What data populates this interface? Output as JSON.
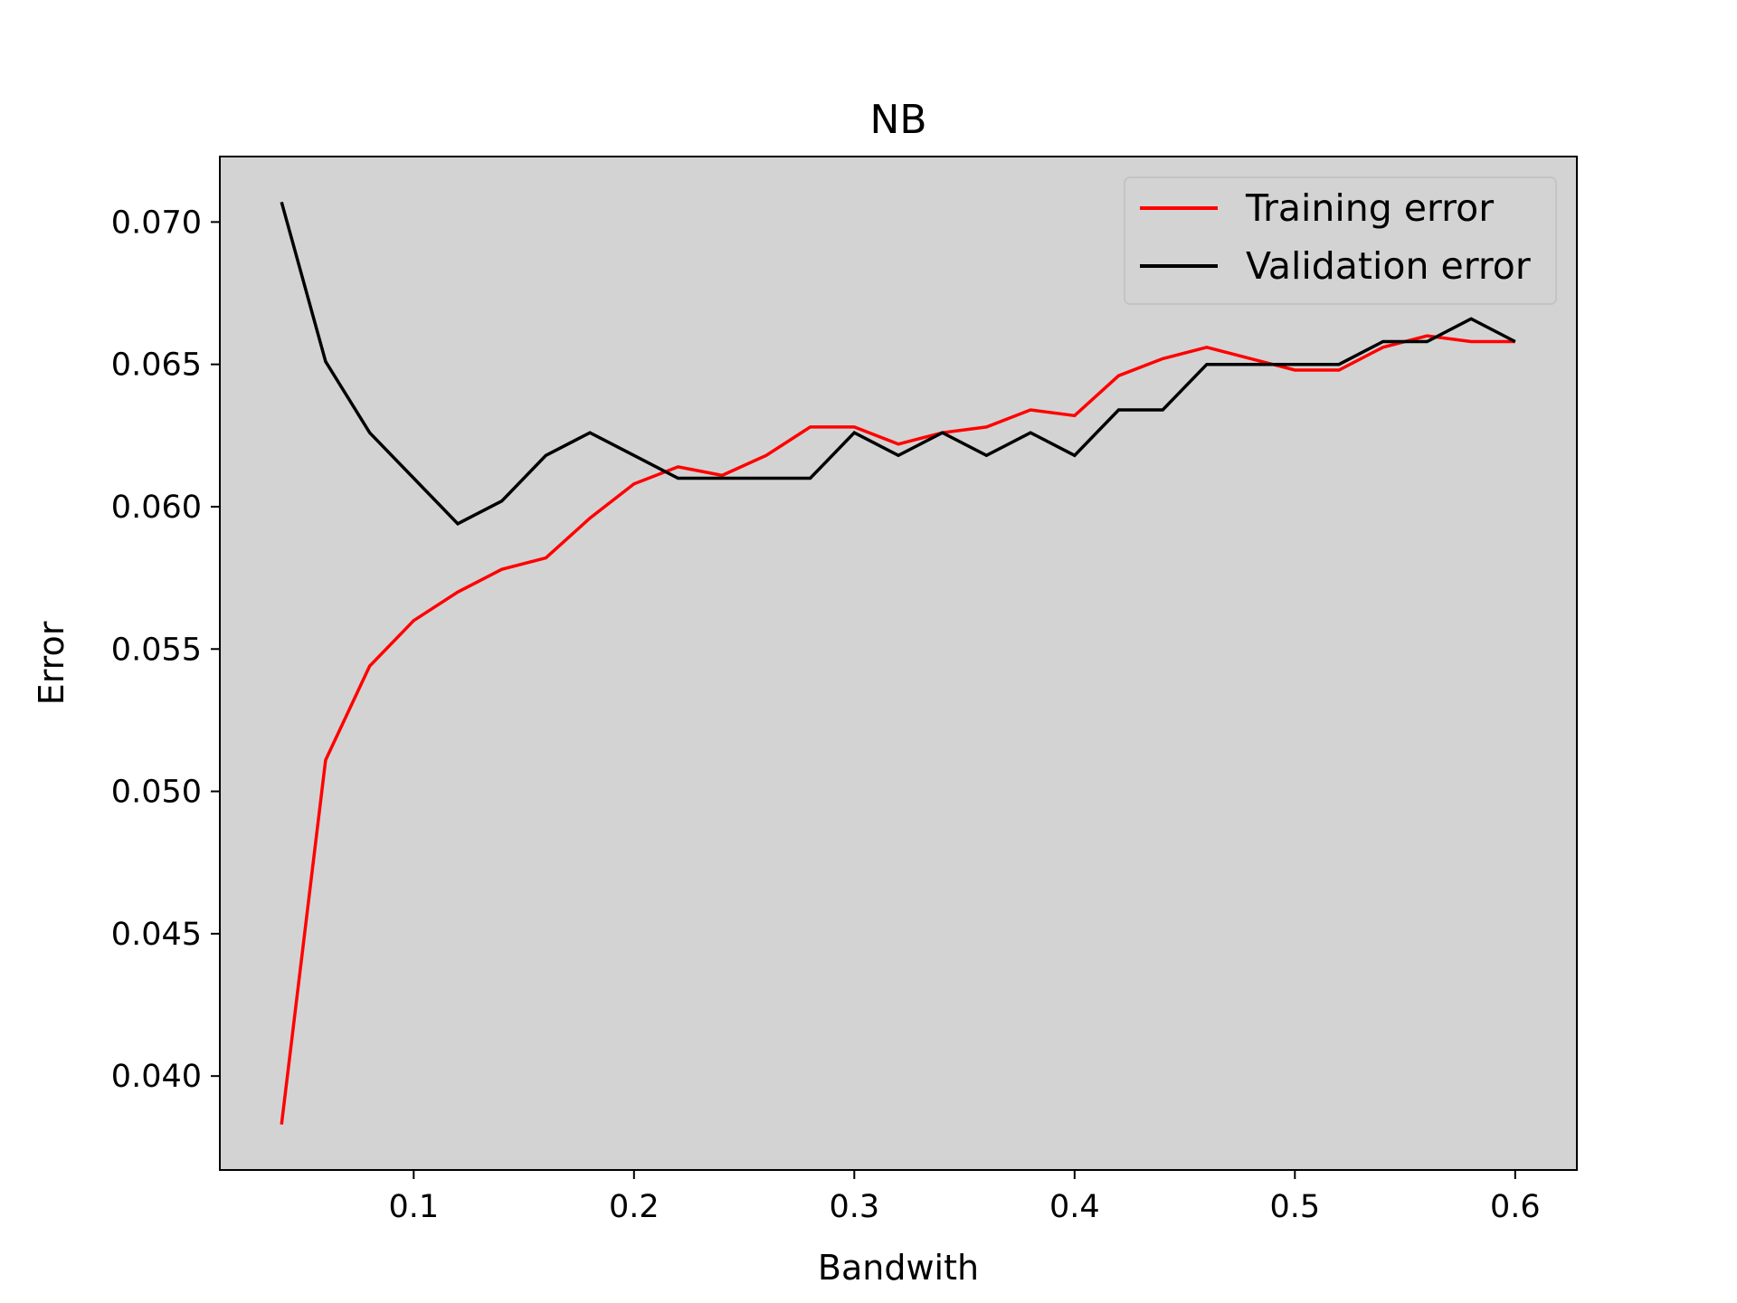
{
  "chart_data": {
    "type": "line",
    "title": "NB",
    "xlabel": "Bandwith",
    "ylabel": "Error",
    "xlim": [
      0.012,
      0.628
    ],
    "ylim": [
      0.0367,
      0.0723
    ],
    "x_ticks": [
      0.1,
      0.2,
      0.3,
      0.4,
      0.5,
      0.6
    ],
    "x_tick_labels": [
      "0.1",
      "0.2",
      "0.3",
      "0.4",
      "0.5",
      "0.6"
    ],
    "y_ticks": [
      0.04,
      0.045,
      0.05,
      0.055,
      0.06,
      0.065,
      0.07
    ],
    "y_tick_labels": [
      "0.040",
      "0.045",
      "0.050",
      "0.055",
      "0.060",
      "0.065",
      "0.070"
    ],
    "grid": false,
    "legend_position": "top-right",
    "background_color": "#d3d3d3",
    "x": [
      0.04,
      0.06,
      0.08,
      0.1,
      0.12,
      0.14,
      0.16,
      0.18,
      0.2,
      0.22,
      0.24,
      0.26,
      0.28,
      0.3,
      0.32,
      0.34,
      0.36,
      0.38,
      0.4,
      0.42,
      0.44,
      0.46,
      0.48,
      0.5,
      0.52,
      0.54,
      0.56,
      0.58,
      0.6
    ],
    "series": [
      {
        "name": "Training error",
        "color": "#ff0000",
        "values": [
          0.0383,
          0.0511,
          0.0544,
          0.056,
          0.057,
          0.0578,
          0.0582,
          0.0596,
          0.0608,
          0.0614,
          0.0611,
          0.0618,
          0.0628,
          0.0628,
          0.0622,
          0.0626,
          0.0628,
          0.0634,
          0.0632,
          0.0646,
          0.0652,
          0.0656,
          0.0652,
          0.0648,
          0.0648,
          0.0656,
          0.066,
          0.0658,
          0.0658
        ]
      },
      {
        "name": "Validation error",
        "color": "#000000",
        "values": [
          0.0707,
          0.0651,
          0.0626,
          0.061,
          0.0594,
          0.0602,
          0.0618,
          0.0626,
          0.0618,
          0.061,
          0.061,
          0.061,
          0.061,
          0.0626,
          0.0618,
          0.0626,
          0.0618,
          0.0626,
          0.0618,
          0.0634,
          0.0634,
          0.065,
          0.065,
          0.065,
          0.065,
          0.0658,
          0.0658,
          0.0666,
          0.0658
        ]
      }
    ]
  }
}
